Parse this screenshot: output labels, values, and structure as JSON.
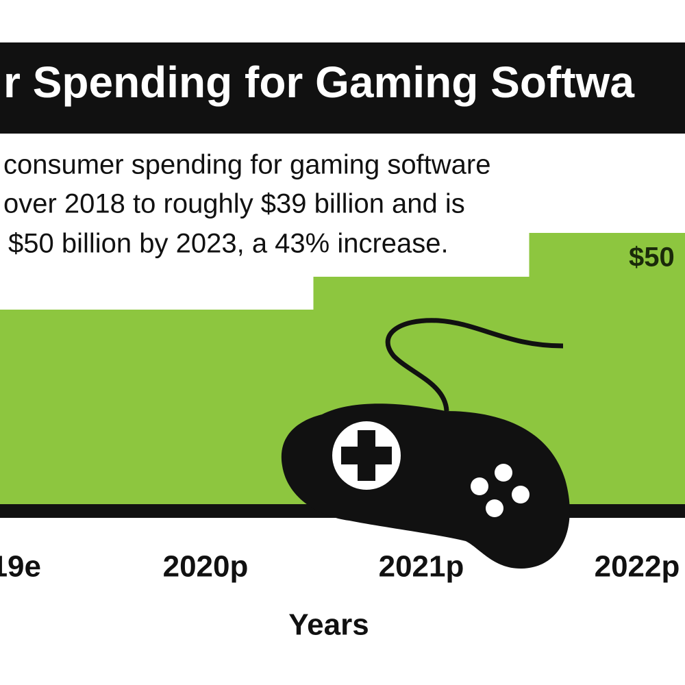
{
  "chart_data": {
    "type": "bar",
    "title": "r Spending for Gaming Softwa",
    "subtitle": [
      "consumer spending for gaming software",
      "over 2018 to roughly $39 billion and is",
      "$50 billion by 2023, a 43% increase."
    ],
    "categories": [
      "19e",
      "2020p",
      "2021p",
      "2022p"
    ],
    "values": [
      36,
      36,
      42,
      50
    ],
    "value_labels": [
      null,
      null,
      null,
      "$50"
    ],
    "color": "#8dc63f",
    "x_label": "Years"
  }
}
